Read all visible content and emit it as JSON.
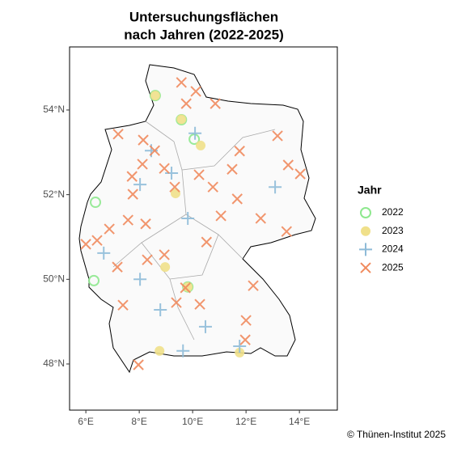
{
  "chart_data": {
    "type": "scatter",
    "title_lines": [
      "Untersuchungsflächen",
      "nach Jahren (2022-2025)"
    ],
    "legend_title": "Jahr",
    "caption": "© Thünen-Institut 2025",
    "xlim": [
      5.39,
      15.42
    ],
    "ylim": [
      46.91,
      55.49
    ],
    "xticks": [
      {
        "value": 6,
        "label": "6°E"
      },
      {
        "value": 8,
        "label": "8°E"
      },
      {
        "value": 10,
        "label": "10°E"
      },
      {
        "value": 12,
        "label": "12°E"
      },
      {
        "value": 14,
        "label": "14°E"
      }
    ],
    "yticks": [
      {
        "value": 48,
        "label": "48°N"
      },
      {
        "value": 50,
        "label": "50°N"
      },
      {
        "value": 52,
        "label": "52°N"
      },
      {
        "value": 54,
        "label": "54°N"
      }
    ],
    "legend_position": "right",
    "series": [
      {
        "name": "2022",
        "color": "#8ee88e",
        "marker": "circle-open",
        "x": [
          8.6,
          9.58,
          10.06,
          6.36,
          6.3,
          9.82
        ],
        "y": [
          54.34,
          53.77,
          53.31,
          51.82,
          49.97,
          49.82
        ]
      },
      {
        "name": "2023",
        "color": "#f0e08a",
        "marker": "circle",
        "x": [
          8.6,
          9.58,
          10.3,
          9.36,
          8.97,
          9.82,
          8.76,
          11.76
        ],
        "y": [
          54.34,
          53.78,
          53.16,
          52.03,
          50.29,
          49.82,
          48.31,
          48.27
        ]
      },
      {
        "name": "2024",
        "color": "#8ebbd8",
        "marker": "plus",
        "x": [
          10.09,
          8.45,
          9.21,
          8.03,
          13.09,
          9.82,
          6.67,
          8.03,
          8.79,
          10.48,
          9.64,
          11.76
        ],
        "y": [
          53.45,
          53.04,
          52.51,
          52.24,
          52.18,
          51.44,
          50.62,
          50.0,
          49.28,
          48.88,
          48.31,
          48.42
        ]
      },
      {
        "name": "2025",
        "color": "#f08a5d",
        "marker": "x",
        "x": [
          9.58,
          10.12,
          9.76,
          10.85,
          7.21,
          8.15,
          8.58,
          8.12,
          7.73,
          8.94,
          9.33,
          10.24,
          10.76,
          11.76,
          11.48,
          13.18,
          13.58,
          14.03,
          11.67,
          12.55,
          13.52,
          7.76,
          7.58,
          8.24,
          6.88,
          7.18,
          8.3,
          8.94,
          7.39,
          9.39,
          9.73,
          12.27,
          12.0,
          11.97,
          7.97,
          10.27,
          10.52,
          11.06,
          6.0,
          6.42
        ],
        "y": [
          54.65,
          54.44,
          54.15,
          54.15,
          53.43,
          53.29,
          53.04,
          52.72,
          52.43,
          52.62,
          52.18,
          52.47,
          52.18,
          53.03,
          52.6,
          53.39,
          52.7,
          52.49,
          51.9,
          51.44,
          51.13,
          52.01,
          51.4,
          51.31,
          51.19,
          50.29,
          50.46,
          50.58,
          49.39,
          49.45,
          49.8,
          49.85,
          49.03,
          48.57,
          47.98,
          49.41,
          50.88,
          51.5,
          50.83,
          50.92
        ]
      }
    ]
  }
}
